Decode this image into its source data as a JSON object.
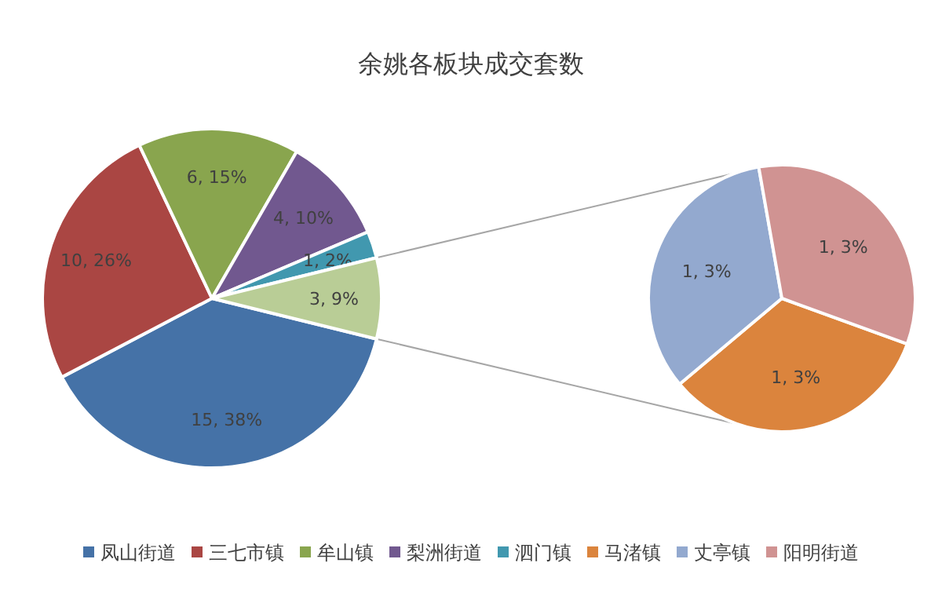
{
  "chart_data": [
    {
      "type": "pie",
      "title": "余姚各板块成交套数",
      "categories": [
        "凤山街道",
        "三七市镇",
        "牟山镇",
        "梨洲街道",
        "泗门镇",
        null
      ],
      "values": [
        15,
        10,
        6,
        4,
        1,
        3
      ],
      "colors": [
        "#4572a7",
        "#aa4643",
        "#89a54e",
        "#71588f",
        "#4198af",
        "#b9cd96"
      ],
      "value_labels": [
        "15, 38%",
        "10, 26%",
        "6, 15%",
        "4, 10%",
        "1, 2%",
        "3, 9%"
      ],
      "legend": "bottom"
    },
    {
      "type": "pie",
      "categories": [
        "马渚镇",
        "丈亭镇",
        "阳明街道"
      ],
      "values": [
        1,
        1,
        1
      ],
      "colors": [
        "#db843d",
        "#93a9cf",
        "#d09392"
      ],
      "value_labels": [
        "1, 3%",
        "1, 3%",
        "1, 3%"
      ],
      "legend": "bottom"
    }
  ]
}
